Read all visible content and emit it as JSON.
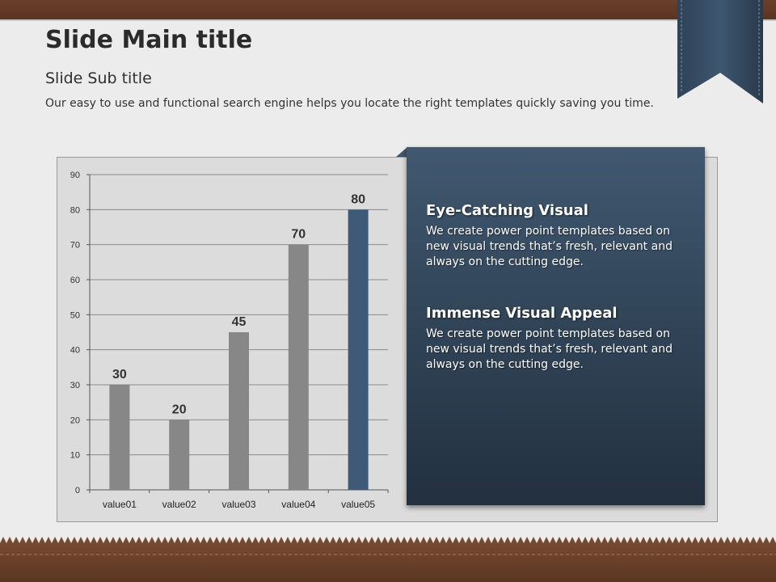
{
  "slide": {
    "title": "Slide Main title",
    "subtitle": "Slide Sub title",
    "description": "Our easy to use and functional search engine helps you locate the right templates quickly saving you time."
  },
  "panel": {
    "sections": [
      {
        "heading": "Eye-Catching Visual",
        "body": "We create power point templates based on new visual trends that’s fresh, relevant and always on the cutting edge."
      },
      {
        "heading": "Immense Visual Appeal",
        "body": "We create power point templates based on new visual trends that’s fresh, relevant and always on the cutting edge."
      }
    ]
  },
  "colors": {
    "bar_default": "#878787",
    "bar_highlight": "#3f5a78",
    "panel_top": "#405870",
    "panel_bottom": "#22303f",
    "wood": "#6a3f2a"
  },
  "chart_data": {
    "type": "bar",
    "categories": [
      "value01",
      "value02",
      "value03",
      "value04",
      "value05"
    ],
    "values": [
      30,
      20,
      45,
      70,
      80
    ],
    "data_labels": [
      "30",
      "20",
      "45",
      "70",
      "80"
    ],
    "highlight_index": 4,
    "ylim": [
      0,
      90
    ],
    "yticks": [
      0,
      10,
      20,
      30,
      40,
      50,
      60,
      70,
      80,
      90
    ],
    "grid": true,
    "title": "",
    "xlabel": "",
    "ylabel": ""
  }
}
